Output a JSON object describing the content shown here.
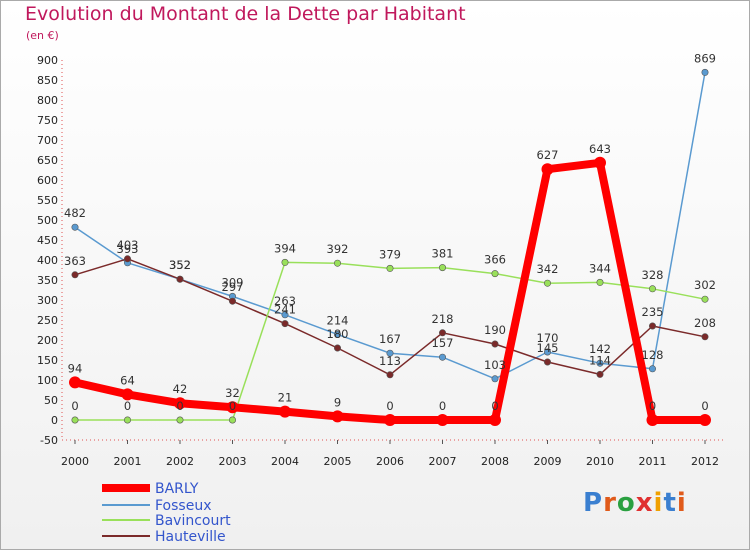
{
  "title": "Evolution du Montant de la Dette par Habitant",
  "subtitle": "(en €)",
  "logo": "Proxiti",
  "chart_data": {
    "type": "line",
    "title": "Evolution du Montant de la Dette par Habitant",
    "subtitle": "(en €)",
    "x": [
      "2000",
      "2001",
      "2002",
      "2003",
      "2004",
      "2005",
      "2006",
      "2007",
      "2008",
      "2009",
      "2010",
      "2011",
      "2012"
    ],
    "ylim": [
      -50,
      900
    ],
    "yticks": [
      -50,
      0,
      50,
      100,
      150,
      200,
      250,
      300,
      350,
      400,
      450,
      500,
      550,
      600,
      650,
      700,
      750,
      800,
      850,
      900
    ],
    "grid": false,
    "legend_position": "bottom-left",
    "series": [
      {
        "name": "BARLY",
        "color": "#ff0000",
        "values": [
          94,
          64,
          42,
          32,
          21,
          9,
          0,
          0,
          0,
          627,
          643,
          0,
          0
        ]
      },
      {
        "name": "Fosseux",
        "color": "#5a9ad0",
        "values": [
          482,
          393,
          352,
          309,
          263,
          214,
          167,
          157,
          103,
          170,
          142,
          128,
          869
        ]
      },
      {
        "name": "Bavincourt",
        "color": "#99e05a",
        "values": [
          0,
          0,
          0,
          0,
          394,
          392,
          379,
          381,
          366,
          342,
          344,
          328,
          302
        ]
      },
      {
        "name": "Hauteville",
        "color": "#7b2a2a",
        "values": [
          363,
          403,
          352,
          297,
          241,
          180,
          113,
          218,
          190,
          145,
          114,
          235,
          208
        ]
      }
    ]
  }
}
